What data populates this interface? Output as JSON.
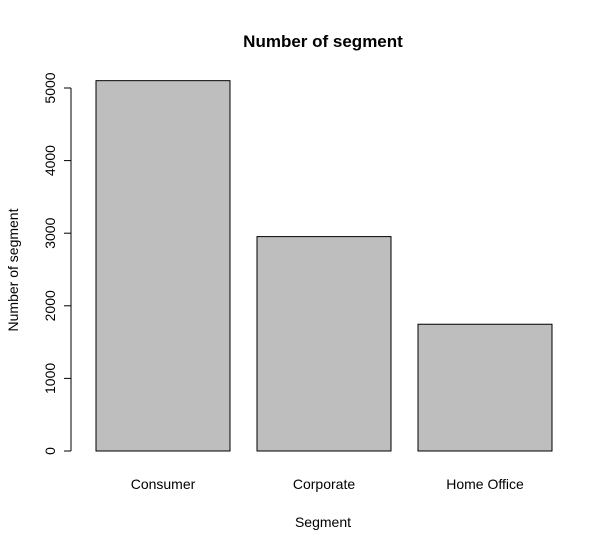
{
  "chart_data": {
    "type": "bar",
    "title": "Number of segment",
    "xlabel": "Segment",
    "ylabel": "Number of segment",
    "categories": [
      "Consumer",
      "Corporate",
      "Home Office"
    ],
    "values": [
      5101,
      2953,
      1746
    ],
    "ylim": [
      0,
      5200
    ],
    "yticks": [
      0,
      1000,
      2000,
      3000,
      4000,
      5000
    ],
    "grid": false,
    "bar_color": "#bebebe",
    "bar_border_color": "#000000"
  }
}
